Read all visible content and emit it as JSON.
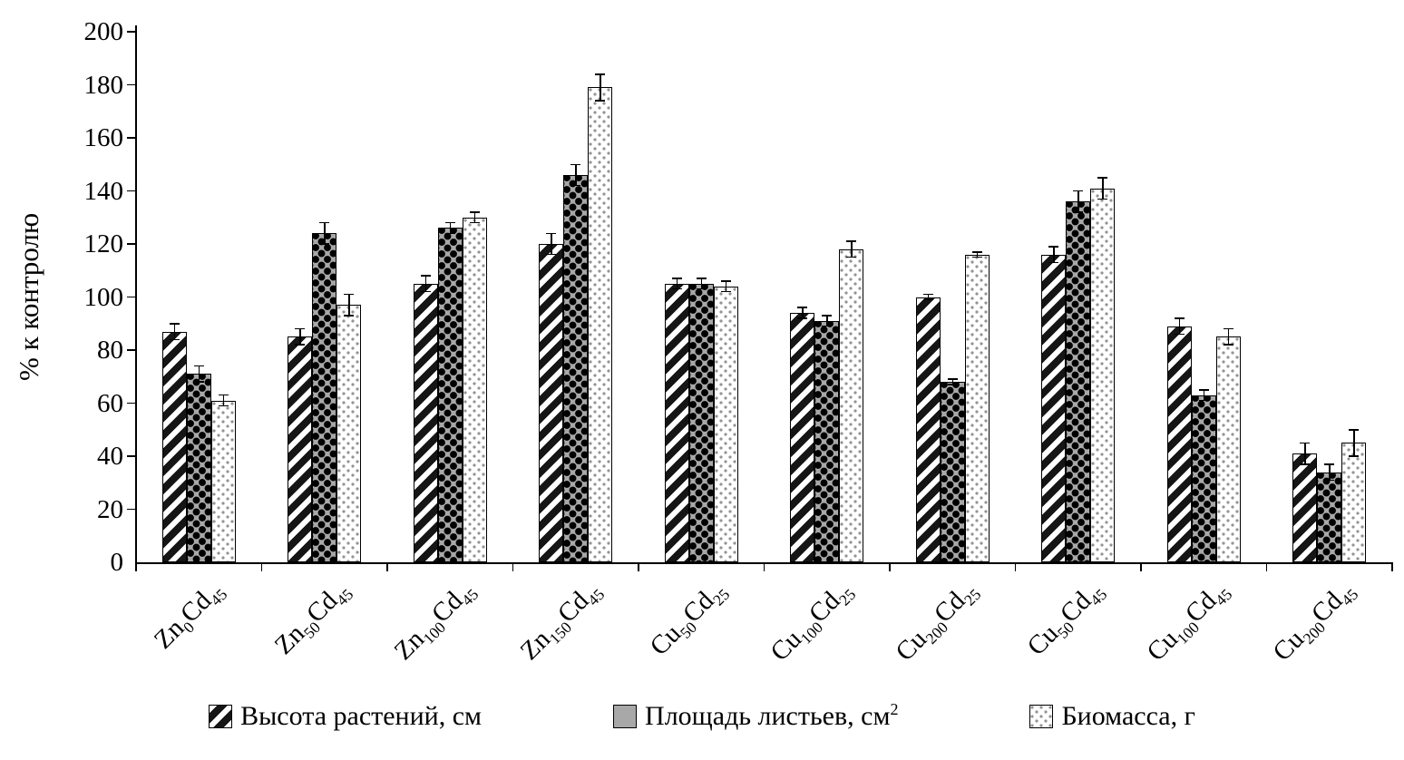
{
  "chart_data": {
    "type": "bar",
    "title": "",
    "ylabel": "% к контролю",
    "xlabel": "",
    "ylim": [
      0,
      200
    ],
    "ytick_step": 20,
    "yticks": [
      0,
      20,
      40,
      60,
      80,
      100,
      120,
      140,
      160,
      180,
      200
    ],
    "grid": false,
    "legend_position": "bottom",
    "bar_border_color": "#000000",
    "axis_color": "#000000",
    "categories": [
      {
        "label": "Zn0Cd45",
        "parts": [
          [
            "Zn",
            "0"
          ],
          [
            "Cd",
            "45"
          ]
        ]
      },
      {
        "label": "Zn50Cd45",
        "parts": [
          [
            "Zn",
            "50"
          ],
          [
            "Cd",
            "45"
          ]
        ]
      },
      {
        "label": "Zn100Cd45",
        "parts": [
          [
            "Zn",
            "100"
          ],
          [
            "Cd",
            "45"
          ]
        ]
      },
      {
        "label": "Zn150Cd45",
        "parts": [
          [
            "Zn",
            "150"
          ],
          [
            "Cd",
            "45"
          ]
        ]
      },
      {
        "label": "Cu50Cd25",
        "parts": [
          [
            "Cu",
            "50"
          ],
          [
            "Cd",
            "25"
          ]
        ]
      },
      {
        "label": "Cu100Cd25",
        "parts": [
          [
            "Cu",
            "100"
          ],
          [
            "Cd",
            "25"
          ]
        ]
      },
      {
        "label": "Cu200Cd25",
        "parts": [
          [
            "Cu",
            "200"
          ],
          [
            "Cd",
            "25"
          ]
        ]
      },
      {
        "label": "Cu50Cd45",
        "parts": [
          [
            "Cu",
            "50"
          ],
          [
            "Cd",
            "45"
          ]
        ]
      },
      {
        "label": "Cu100Cd45",
        "parts": [
          [
            "Cu",
            "100"
          ],
          [
            "Cd",
            "45"
          ]
        ]
      },
      {
        "label": "Cu200Cd45",
        "parts": [
          [
            "Cu",
            "200"
          ],
          [
            "Cd",
            "45"
          ]
        ]
      }
    ],
    "series": [
      {
        "name": "Высота растений, см",
        "name_sup": "",
        "pattern": "diagonal-stripes",
        "fill": "#ffffff",
        "values": [
          87,
          85,
          105,
          120,
          105,
          94,
          100,
          116,
          89,
          41
        ],
        "errors": [
          3,
          3,
          3,
          4,
          2,
          2,
          1,
          3,
          3,
          4
        ]
      },
      {
        "name": "Площадь листьев, см",
        "name_sup": "2",
        "pattern": "black-clubs-on-gray",
        "fill": "#a8a8a8",
        "values": [
          71,
          124,
          126,
          146,
          105,
          91,
          68,
          136,
          63,
          34
        ],
        "errors": [
          3,
          4,
          2,
          4,
          2,
          2,
          1,
          4,
          2,
          3
        ]
      },
      {
        "name": "Биомасса, г",
        "name_sup": "",
        "pattern": "light-dots",
        "fill": "#ffffff",
        "values": [
          61,
          97,
          130,
          179,
          104,
          118,
          116,
          141,
          85,
          45
        ],
        "errors": [
          2,
          4,
          2,
          5,
          2,
          3,
          1,
          4,
          3,
          5
        ]
      }
    ]
  }
}
